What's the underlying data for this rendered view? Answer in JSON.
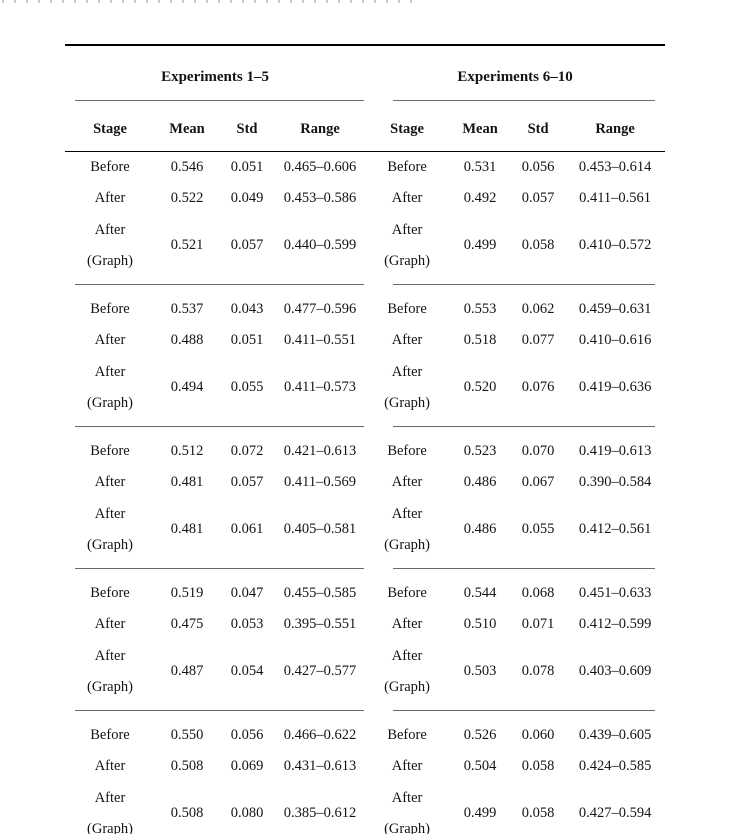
{
  "table": {
    "group_headers": [
      {
        "label": "Experiments 1–5"
      },
      {
        "label": "Experiments 6–10"
      }
    ],
    "column_headers": [
      "Stage",
      "Mean",
      "Std",
      "Range",
      "Stage",
      "Mean",
      "Std",
      "Range"
    ],
    "groups": [
      {
        "left": [
          {
            "stage": "Before",
            "mean": "0.546",
            "std": "0.051",
            "range": "0.465–0.606"
          },
          {
            "stage": "After",
            "mean": "0.522",
            "std": "0.049",
            "range": "0.453–0.586"
          },
          {
            "stage": "After",
            "stage2": "(Graph)",
            "mean": "0.521",
            "std": "0.057",
            "range": "0.440–0.599"
          }
        ],
        "right": [
          {
            "stage": "Before",
            "mean": "0.531",
            "std": "0.056",
            "range": "0.453–0.614"
          },
          {
            "stage": "After",
            "mean": "0.492",
            "std": "0.057",
            "range": "0.411–0.561"
          },
          {
            "stage": "After",
            "stage2": "(Graph)",
            "mean": "0.499",
            "std": "0.058",
            "range": "0.410–0.572"
          }
        ]
      },
      {
        "left": [
          {
            "stage": "Before",
            "mean": "0.537",
            "std": "0.043",
            "range": "0.477–0.596"
          },
          {
            "stage": "After",
            "mean": "0.488",
            "std": "0.051",
            "range": "0.411–0.551"
          },
          {
            "stage": "After",
            "stage2": "(Graph)",
            "mean": "0.494",
            "std": "0.055",
            "range": "0.411–0.573"
          }
        ],
        "right": [
          {
            "stage": "Before",
            "mean": "0.553",
            "std": "0.062",
            "range": "0.459–0.631"
          },
          {
            "stage": "After",
            "mean": "0.518",
            "std": "0.077",
            "range": "0.410–0.616"
          },
          {
            "stage": "After",
            "stage2": "(Graph)",
            "mean": "0.520",
            "std": "0.076",
            "range": "0.419–0.636"
          }
        ]
      },
      {
        "left": [
          {
            "stage": "Before",
            "mean": "0.512",
            "std": "0.072",
            "range": "0.421–0.613"
          },
          {
            "stage": "After",
            "mean": "0.481",
            "std": "0.057",
            "range": "0.411–0.569"
          },
          {
            "stage": "After",
            "stage2": "(Graph)",
            "mean": "0.481",
            "std": "0.061",
            "range": "0.405–0.581"
          }
        ],
        "right": [
          {
            "stage": "Before",
            "mean": "0.523",
            "std": "0.070",
            "range": "0.419–0.613"
          },
          {
            "stage": "After",
            "mean": "0.486",
            "std": "0.067",
            "range": "0.390–0.584"
          },
          {
            "stage": "After",
            "stage2": "(Graph)",
            "mean": "0.486",
            "std": "0.055",
            "range": "0.412–0.561"
          }
        ]
      },
      {
        "left": [
          {
            "stage": "Before",
            "mean": "0.519",
            "std": "0.047",
            "range": "0.455–0.585"
          },
          {
            "stage": "After",
            "mean": "0.475",
            "std": "0.053",
            "range": "0.395–0.551"
          },
          {
            "stage": "After",
            "stage2": "(Graph)",
            "mean": "0.487",
            "std": "0.054",
            "range": "0.427–0.577"
          }
        ],
        "right": [
          {
            "stage": "Before",
            "mean": "0.544",
            "std": "0.068",
            "range": "0.451–0.633"
          },
          {
            "stage": "After",
            "mean": "0.510",
            "std": "0.071",
            "range": "0.412–0.599"
          },
          {
            "stage": "After",
            "stage2": "(Graph)",
            "mean": "0.503",
            "std": "0.078",
            "range": "0.403–0.609"
          }
        ]
      },
      {
        "left": [
          {
            "stage": "Before",
            "mean": "0.550",
            "std": "0.056",
            "range": "0.466–0.622"
          },
          {
            "stage": "After",
            "mean": "0.508",
            "std": "0.069",
            "range": "0.431–0.613"
          },
          {
            "stage": "After",
            "stage2": "(Graph)",
            "mean": "0.508",
            "std": "0.080",
            "range": "0.385–0.612"
          }
        ],
        "right": [
          {
            "stage": "Before",
            "mean": "0.526",
            "std": "0.060",
            "range": "0.439–0.605"
          },
          {
            "stage": "After",
            "mean": "0.504",
            "std": "0.058",
            "range": "0.424–0.585"
          },
          {
            "stage": "After",
            "stage2": "(Graph)",
            "mean": "0.499",
            "std": "0.058",
            "range": "0.427–0.594"
          }
        ]
      }
    ]
  }
}
